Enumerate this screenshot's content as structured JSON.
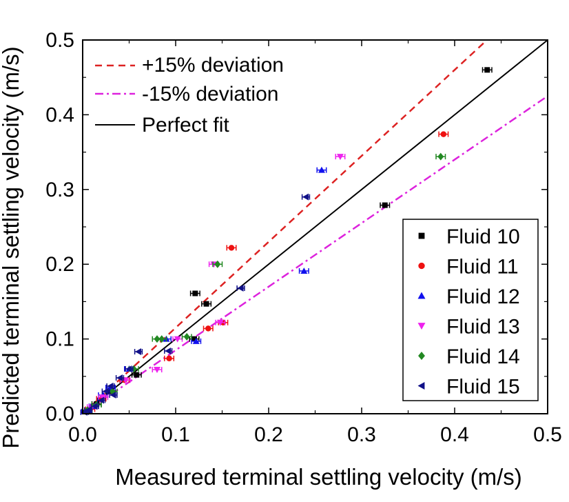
{
  "chart_data": {
    "type": "scatter",
    "title": "",
    "xlabel": "Measured terminal settling velocity (m/s)",
    "ylabel": "Predicted terminal settling velocity (m/s)",
    "xlim": [
      0.0,
      0.5
    ],
    "ylim": [
      0.0,
      0.5
    ],
    "xticks": [
      "0.0",
      "0.1",
      "0.2",
      "0.3",
      "0.4",
      "0.5"
    ],
    "yticks": [
      "0.0",
      "0.1",
      "0.2",
      "0.3",
      "0.4",
      "0.5"
    ],
    "grid": false,
    "reference_lines": [
      {
        "name": "+15% deviation",
        "slope": 1.15,
        "style": "dashed",
        "color": "#dd2222"
      },
      {
        "name": "-15% deviation",
        "slope": 0.85,
        "style": "dash-dot",
        "color": "#dd22dd"
      },
      {
        "name": "Perfect fit",
        "slope": 1.0,
        "style": "solid",
        "color": "#000000"
      }
    ],
    "legend_position": "lower-right",
    "series": [
      {
        "name": "Fluid 10",
        "marker": "square",
        "color": "#000000",
        "points": [
          [
            0.435,
            0.46
          ],
          [
            0.325,
            0.279
          ],
          [
            0.121,
            0.161
          ],
          [
            0.133,
            0.147
          ],
          [
            0.12,
            0.1
          ],
          [
            0.058,
            0.052
          ],
          [
            0.03,
            0.03
          ],
          [
            0.015,
            0.013
          ],
          [
            0.005,
            0.004
          ]
        ],
        "xerr": 0.005
      },
      {
        "name": "Fluid 11",
        "marker": "circle",
        "color": "#ee1111",
        "points": [
          [
            0.388,
            0.374
          ],
          [
            0.16,
            0.222
          ],
          [
            0.151,
            0.122
          ],
          [
            0.135,
            0.114
          ],
          [
            0.093,
            0.074
          ],
          [
            0.045,
            0.045
          ],
          [
            0.02,
            0.02
          ],
          [
            0.008,
            0.006
          ]
        ],
        "xerr": 0.005
      },
      {
        "name": "Fluid 12",
        "marker": "triangle-up",
        "color": "#1111ee",
        "points": [
          [
            0.257,
            0.326
          ],
          [
            0.238,
            0.191
          ],
          [
            0.122,
            0.097
          ],
          [
            0.09,
            0.1
          ],
          [
            0.05,
            0.06
          ],
          [
            0.03,
            0.035
          ],
          [
            0.022,
            0.025
          ],
          [
            0.012,
            0.01
          ],
          [
            0.004,
            0.003
          ]
        ],
        "xerr": 0.005
      },
      {
        "name": "Fluid 13",
        "marker": "triangle-down",
        "color": "#ee22ee",
        "points": [
          [
            0.277,
            0.344
          ],
          [
            0.141,
            0.2
          ],
          [
            0.148,
            0.122
          ],
          [
            0.102,
            0.1
          ],
          [
            0.08,
            0.059
          ],
          [
            0.046,
            0.045
          ],
          [
            0.022,
            0.022
          ],
          [
            0.01,
            0.009
          ]
        ],
        "xerr": 0.005
      },
      {
        "name": "Fluid 14",
        "marker": "diamond",
        "color": "#228822",
        "points": [
          [
            0.385,
            0.344
          ],
          [
            0.145,
            0.2
          ],
          [
            0.08,
            0.1
          ],
          [
            0.085,
            0.1
          ],
          [
            0.112,
            0.103
          ],
          [
            0.055,
            0.06
          ],
          [
            0.032,
            0.03
          ],
          [
            0.015,
            0.012
          ],
          [
            0.005,
            0.005
          ]
        ],
        "xerr": 0.005
      },
      {
        "name": "Fluid 15",
        "marker": "triangle-left",
        "color": "#111188",
        "points": [
          [
            0.24,
            0.29
          ],
          [
            0.17,
            0.168
          ],
          [
            0.092,
            0.084
          ],
          [
            0.06,
            0.083
          ],
          [
            0.05,
            0.06
          ],
          [
            0.04,
            0.048
          ],
          [
            0.03,
            0.037
          ],
          [
            0.033,
            0.025
          ],
          [
            0.025,
            0.03
          ],
          [
            0.02,
            0.018
          ],
          [
            0.013,
            0.01
          ],
          [
            0.006,
            0.005
          ],
          [
            0.002,
            0.002
          ]
        ],
        "xerr": 0.004
      }
    ]
  }
}
